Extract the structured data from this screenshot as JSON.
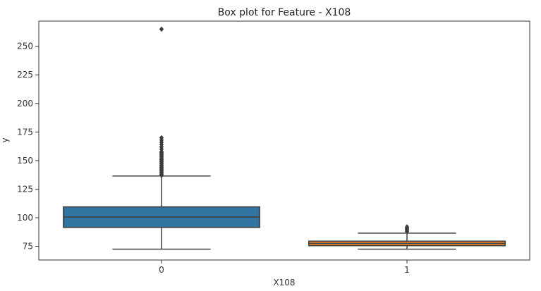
{
  "chart_data": {
    "type": "boxplot",
    "title": "Box plot for Feature - X108",
    "xlabel": "X108",
    "ylabel": "y",
    "categories": [
      "0",
      "1"
    ],
    "ylim": [
      63,
      272
    ],
    "yticks": [
      75,
      100,
      125,
      150,
      175,
      200,
      225,
      250
    ],
    "grid": false,
    "boxes": [
      {
        "category": "0",
        "color": "#3274a1",
        "whisker_low": 72.5,
        "q1": 91.5,
        "median": 100.5,
        "q3": 109.5,
        "whisker_high": 136.5,
        "outliers": [
          137,
          138,
          139,
          140,
          141,
          142,
          143,
          144,
          145,
          146,
          147,
          148,
          149,
          150,
          151,
          152,
          153,
          154,
          155,
          156,
          157,
          158,
          160,
          162,
          164,
          166,
          168,
          170,
          265
        ]
      },
      {
        "category": "1",
        "color": "#e1812c",
        "whisker_low": 72.5,
        "q1": 75.5,
        "median": 77.5,
        "q3": 79.5,
        "whisker_high": 86.5,
        "outliers": [
          88,
          89,
          90,
          91,
          92
        ]
      }
    ]
  }
}
